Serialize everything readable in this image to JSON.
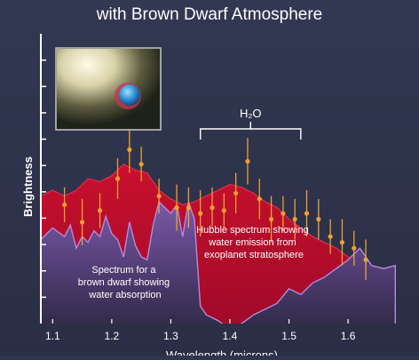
{
  "header": {
    "title_line": "with Brown Dwarf Atmosphere"
  },
  "colors": {
    "background": "#2f3550",
    "hubble_fill": "#c8102e",
    "hubble_edge": "#e0304a",
    "brown_dwarf_fill": "#7a5aa8",
    "brown_dwarf_edge": "#b48ae0",
    "data_point": "#f0a030",
    "text": "#ffffff"
  },
  "inset": {
    "description_icon": "planet-near-star-icon"
  },
  "chart_data": {
    "type": "area",
    "title": "with Brown Dwarf Atmosphere",
    "ylabel": "Brightness",
    "xlabel": "Wavelength (microns)",
    "xlim": [
      1.08,
      1.69
    ],
    "ylim": [
      0,
      10
    ],
    "x_ticks": [
      1.1,
      1.2,
      1.3,
      1.4,
      1.5,
      1.6
    ],
    "x_tick_labels": [
      "1.1",
      "1.2",
      "1.3",
      "1.4",
      "1.5",
      "1.6"
    ],
    "y_tick_count": 10,
    "grid": false,
    "series": [
      {
        "key": "hubble",
        "label": "Hubble spectrum showing water emission from exoplanet stratosphere",
        "x": [
          1.08,
          1.1,
          1.12,
          1.14,
          1.16,
          1.18,
          1.2,
          1.22,
          1.24,
          1.26,
          1.28,
          1.3,
          1.32,
          1.34,
          1.36,
          1.38,
          1.4,
          1.42,
          1.44,
          1.46,
          1.48,
          1.5,
          1.52,
          1.54,
          1.56,
          1.58,
          1.6,
          1.62,
          1.64,
          1.66,
          1.68
        ],
        "y": [
          4.4,
          4.6,
          4.4,
          4.6,
          5.0,
          4.9,
          5.1,
          5.5,
          5.3,
          5.2,
          4.6,
          4.3,
          4.1,
          4.2,
          4.4,
          4.6,
          4.8,
          4.7,
          4.5,
          4.2,
          4.0,
          3.6,
          3.3,
          3.0,
          2.8,
          2.6,
          2.3,
          2.0,
          1.9,
          1.9,
          1.9
        ]
      },
      {
        "key": "brown_dwarf",
        "label": "Spectrum for a brown dwarf showing water absorption",
        "x": [
          1.08,
          1.1,
          1.12,
          1.13,
          1.14,
          1.15,
          1.16,
          1.17,
          1.18,
          1.19,
          1.2,
          1.21,
          1.22,
          1.23,
          1.24,
          1.25,
          1.26,
          1.27,
          1.28,
          1.29,
          1.3,
          1.31,
          1.32,
          1.33,
          1.34,
          1.35,
          1.36,
          1.38,
          1.4,
          1.42,
          1.44,
          1.46,
          1.48,
          1.5,
          1.52,
          1.54,
          1.56,
          1.58,
          1.6,
          1.62,
          1.64,
          1.66,
          1.68
        ],
        "y": [
          2.9,
          3.3,
          3.0,
          3.4,
          2.6,
          3.0,
          2.8,
          3.2,
          3.0,
          3.7,
          3.1,
          2.9,
          2.3,
          3.5,
          2.7,
          2.3,
          2.2,
          3.4,
          4.2,
          4.0,
          3.8,
          4.1,
          3.0,
          4.2,
          3.6,
          0.6,
          0.3,
          0.1,
          -0.2,
          0.0,
          0.3,
          0.5,
          0.7,
          1.2,
          1.0,
          1.4,
          1.6,
          1.9,
          2.2,
          2.6,
          2.0,
          1.9,
          2.0
        ]
      }
    ],
    "points": {
      "x": [
        1.12,
        1.15,
        1.18,
        1.21,
        1.23,
        1.25,
        1.28,
        1.31,
        1.33,
        1.35,
        1.37,
        1.39,
        1.41,
        1.43,
        1.45,
        1.47,
        1.49,
        1.51,
        1.53,
        1.55,
        1.57,
        1.59,
        1.61,
        1.63
      ],
      "y": [
        4.1,
        3.5,
        3.9,
        5.0,
        6.0,
        5.5,
        4.4,
        4.0,
        4.0,
        3.8,
        4.0,
        3.9,
        4.5,
        5.6,
        4.3,
        3.6,
        3.8,
        3.6,
        3.8,
        3.6,
        3.0,
        2.8,
        2.6,
        2.2
      ],
      "err": [
        0.6,
        0.8,
        0.6,
        0.7,
        0.8,
        0.6,
        0.6,
        0.8,
        0.7,
        0.8,
        0.7,
        0.6,
        0.7,
        0.8,
        0.7,
        0.8,
        0.6,
        0.7,
        0.8,
        0.7,
        0.6,
        0.8,
        0.6,
        0.7
      ]
    },
    "annotations": {
      "molecule_label": "H₂O",
      "bracket_x": [
        1.35,
        1.52
      ],
      "hubble_text": [
        "Hubble spectrum showing",
        "water emission from",
        "exoplanet stratosphere"
      ],
      "brown_dwarf_text": [
        "Spectrum for a",
        "brown dwarf showing",
        "water absorption"
      ]
    }
  }
}
